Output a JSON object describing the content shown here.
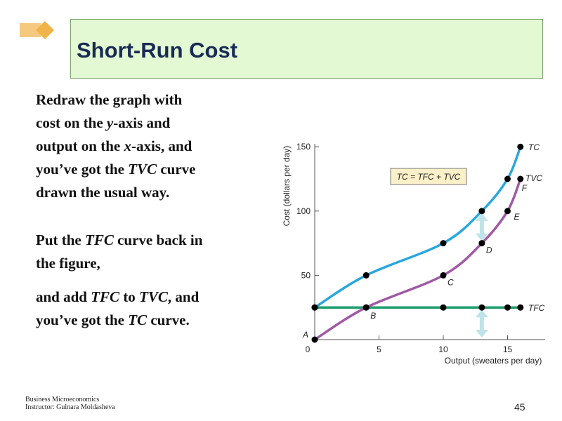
{
  "slide": {
    "title": "Short-Run Cost",
    "page_number": "45",
    "footer_line1": "Business Microeconomics",
    "footer_line2": "Instructor: Gulnara Moldasheva",
    "colors": {
      "title_bg": "#e3f9d3",
      "logo": "#f5c97f",
      "tc": "#29a7dd",
      "tvc": "#a05aa5",
      "tfc": "#1e9e6e",
      "arrow": "#bfe3e8",
      "annotation_bg": "#fbf0c8"
    }
  },
  "text": {
    "p1": [
      "Redraw the graph with",
      "cost on the ",
      "y",
      "-axis and",
      "output on the ",
      "x",
      "-axis, and",
      "you’ve got the ",
      "TVC",
      " curve",
      "drawn the usual way."
    ],
    "p2": [
      "Put the ",
      "TFC",
      " curve back in",
      "the figure,"
    ],
    "p3": [
      "and add ",
      "TFC",
      " to ",
      "TVC",
      ", and",
      "you’ve got the ",
      "TC",
      " curve."
    ]
  },
  "chart_data": {
    "type": "line",
    "xlabel": "Output (sweaters per day)",
    "ylabel": "Cost (dollars per day)",
    "xlim": [
      0,
      18
    ],
    "ylim": [
      0,
      155
    ],
    "x_ticks": [
      0,
      5,
      10,
      15
    ],
    "y_ticks": [
      50,
      100,
      150
    ],
    "annotation": "TC = TFC + TVC",
    "series": [
      {
        "name": "TC",
        "color": "#29a7dd",
        "points": [
          [
            0,
            25
          ],
          [
            4,
            50
          ],
          [
            10,
            75
          ],
          [
            13,
            100
          ],
          [
            15,
            125
          ],
          [
            16,
            150
          ]
        ]
      },
      {
        "name": "TVC",
        "color": "#a05aa5",
        "points": [
          [
            0,
            0
          ],
          [
            4,
            25
          ],
          [
            10,
            50
          ],
          [
            13,
            75
          ],
          [
            15,
            100
          ],
          [
            16,
            125
          ]
        ]
      },
      {
        "name": "TFC",
        "color": "#1e9e6e",
        "points": [
          [
            0,
            25
          ],
          [
            4,
            25
          ],
          [
            10,
            25
          ],
          [
            13,
            25
          ],
          [
            15,
            25
          ],
          [
            16,
            25
          ]
        ]
      }
    ],
    "point_labels": [
      {
        "label": "A",
        "x": 0,
        "y": 0
      },
      {
        "label": "B",
        "x": 4,
        "y": 25
      },
      {
        "label": "C",
        "x": 10,
        "y": 50
      },
      {
        "label": "D",
        "x": 13,
        "y": 75
      },
      {
        "label": "E",
        "x": 15,
        "y": 100
      },
      {
        "label": "F",
        "x": 16,
        "y": 125
      }
    ],
    "arrows": [
      {
        "x": 13,
        "from": 75,
        "to": 100
      },
      {
        "x": 13,
        "from": 0,
        "to": 25
      }
    ]
  }
}
